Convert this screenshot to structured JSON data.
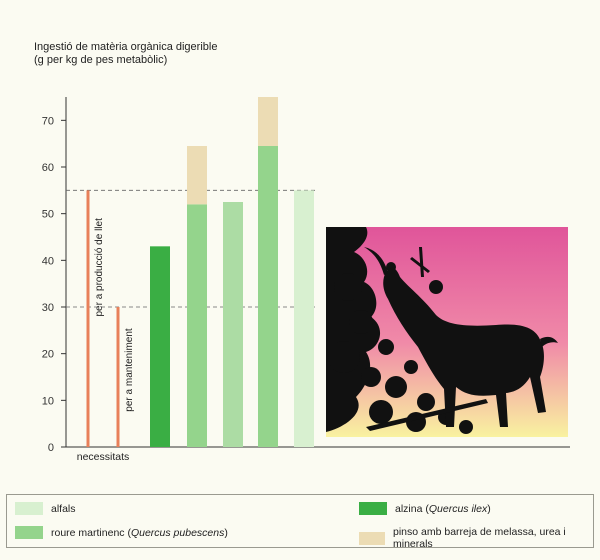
{
  "chart_data": {
    "type": "bar",
    "ylabel_line1": "Ingestió de matèria orgànica digerible",
    "ylabel_line2": "(g per kg de pes metabòlic)",
    "ylim": [
      0,
      75
    ],
    "yticks": [
      0,
      10,
      20,
      30,
      40,
      50,
      60,
      70
    ],
    "reference_lines": [
      {
        "label": "per a producció de llet",
        "value": 55
      },
      {
        "label": "per a manteniment",
        "value": 30
      }
    ],
    "needs_label": "necessitats",
    "bars": [
      {
        "series": "alzina",
        "value": 43
      },
      {
        "series": "roure",
        "value": 52,
        "supplement": 12.5
      },
      {
        "series": "alfals_mid",
        "value": 52.5
      },
      {
        "series": "roure_light",
        "value": 64.5,
        "supplement": 10.5
      },
      {
        "series": "alfals",
        "value": 55
      }
    ],
    "colors": {
      "alfals": "#d8f0d0",
      "roure": "#94d48c",
      "alzina": "#3aae44",
      "pinso": "#ecdcb4",
      "needs": "#e8805a",
      "alfals_mid": "#acdca4",
      "roure_light": "#94d48c"
    }
  },
  "legend": {
    "alfals": "alfals",
    "roure_a": "roure martinenc (",
    "roure_b": "Quercus pubescens",
    "roure_c": ")",
    "alzina_a": "alzina (",
    "alzina_b": "Quercus ilex",
    "alzina_c": ")",
    "pinso": "pinso amb barreja de melassa, urea i minerals"
  }
}
